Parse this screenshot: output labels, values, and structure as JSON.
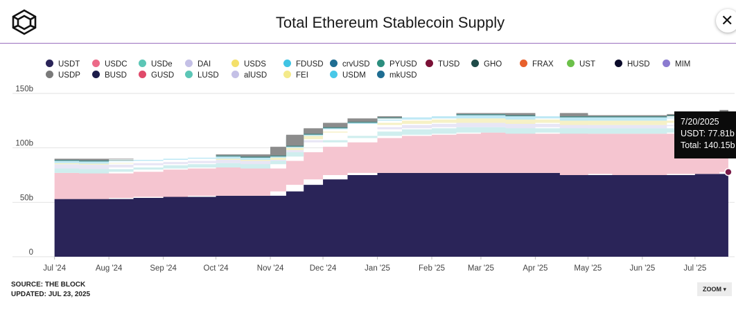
{
  "header": {
    "title": "Total Ethereum Stablecoin Supply",
    "close_label": "✕"
  },
  "legend": [
    {
      "name": "USDT",
      "color": "#2a2458"
    },
    {
      "name": "USDC",
      "color": "#ec6a88"
    },
    {
      "name": "USDe",
      "color": "#5cc6b6"
    },
    {
      "name": "DAI",
      "color": "#c4c0e6"
    },
    {
      "name": "USDS",
      "color": "#f4e06a"
    },
    {
      "name": "FDUSD",
      "color": "#40c4e4"
    },
    {
      "name": "crvUSD",
      "color": "#1f6d92"
    },
    {
      "name": "PYUSD",
      "color": "#2c8e7e"
    },
    {
      "name": "TUSD",
      "color": "#7a1036"
    },
    {
      "name": "GHO",
      "color": "#1e4a48"
    },
    {
      "name": "FRAX",
      "color": "#e8602c"
    },
    {
      "name": "UST",
      "color": "#6cc04a"
    },
    {
      "name": "HUSD",
      "color": "#0b0b2a"
    },
    {
      "name": "MIM",
      "color": "#8b7bd0"
    },
    {
      "name": "USDP",
      "color": "#7a7a7a"
    },
    {
      "name": "BUSD",
      "color": "#1c1c4a"
    },
    {
      "name": "GUSD",
      "color": "#e04a6a"
    },
    {
      "name": "LUSD",
      "color": "#5cc6b6"
    },
    {
      "name": "alUSD",
      "color": "#c4c0e6"
    },
    {
      "name": "FEI",
      "color": "#f4ea8a"
    },
    {
      "name": "USDM",
      "color": "#48c8e8"
    },
    {
      "name": "mkUSD",
      "color": "#1f6d92"
    }
  ],
  "chart_data": {
    "type": "area",
    "title": "Total Ethereum Stablecoin Supply",
    "xlabel": "",
    "ylabel": "",
    "ylim": [
      0,
      150
    ],
    "y_ticks": [
      "0",
      "50b",
      "100b",
      "150b"
    ],
    "x_ticks": [
      "Jul '24",
      "Aug '24",
      "Sep '24",
      "Oct '24",
      "Nov '24",
      "Dec '24",
      "Jan '25",
      "Feb '25",
      "Mar '25",
      "Apr '25",
      "May '25",
      "Jun '25",
      "Jul '25"
    ],
    "grid": true,
    "stacked": true,
    "x": [
      "2024-07-01",
      "2024-07-15",
      "2024-08-01",
      "2024-08-15",
      "2024-09-01",
      "2024-09-15",
      "2024-10-01",
      "2024-10-15",
      "2024-11-01",
      "2024-11-10",
      "2024-11-20",
      "2024-12-01",
      "2024-12-15",
      "2025-01-01",
      "2025-01-15",
      "2025-02-01",
      "2025-02-15",
      "2025-03-01",
      "2025-03-15",
      "2025-04-01",
      "2025-04-15",
      "2025-05-01",
      "2025-05-15",
      "2025-06-01",
      "2025-06-15",
      "2025-07-01",
      "2025-07-15",
      "2025-07-20"
    ],
    "series": [
      {
        "name": "USDT",
        "color": "#2a2458",
        "values": [
          53,
          53,
          53,
          54,
          55,
          55,
          56,
          56,
          56,
          60,
          66,
          71,
          75,
          77,
          77,
          77,
          77,
          77,
          77,
          77,
          77,
          75,
          76,
          75,
          75,
          76,
          76,
          77.81
        ]
      },
      {
        "name": "USDC",
        "color": "#f5c5d0",
        "values": [
          24,
          24,
          23.5,
          24,
          25,
          26,
          26,
          26,
          25,
          28,
          30,
          30,
          30,
          32,
          34,
          35,
          36,
          37,
          37,
          36,
          37,
          38,
          37,
          38,
          38,
          38,
          39,
          40
        ]
      },
      {
        "name": "USDe",
        "color": "#cfeeee",
        "values": [
          4,
          4,
          4,
          4,
          4,
          4,
          4,
          4,
          4,
          4,
          5,
          6,
          6,
          6,
          6,
          6,
          6,
          5,
          5,
          5,
          5,
          5,
          5,
          5,
          5,
          6,
          6,
          6
        ]
      },
      {
        "name": "DAI",
        "color": "#e8e6f5",
        "values": [
          4,
          4,
          4,
          4,
          3,
          3,
          3,
          3,
          3,
          4,
          4,
          4,
          4,
          4,
          4,
          4,
          4,
          4,
          4,
          4,
          4,
          3,
          3,
          3,
          3,
          3,
          3,
          3
        ]
      },
      {
        "name": "USDS",
        "color": "#f6f1c6",
        "values": [
          1,
          1,
          1,
          1,
          1,
          1,
          1,
          1,
          1,
          2,
          3,
          3,
          4,
          4,
          4,
          4,
          4,
          4,
          4,
          4,
          4,
          4,
          4,
          4,
          4,
          4,
          4,
          4
        ]
      },
      {
        "name": "FDUSD",
        "color": "#bfe9f5",
        "values": [
          2,
          2,
          2,
          2,
          2,
          2,
          2,
          2,
          2,
          2,
          3,
          3,
          3,
          3,
          3,
          3,
          3,
          3,
          3,
          3,
          3,
          3,
          3,
          3,
          3,
          3,
          3,
          3
        ]
      },
      {
        "name": "PYUSD",
        "color": "#4f8a88",
        "values": [
          1,
          1,
          1,
          1,
          1,
          1,
          1,
          1,
          1,
          1,
          1,
          1,
          1,
          1,
          1,
          1,
          1,
          1,
          1,
          1,
          1,
          1,
          1,
          1,
          1,
          1,
          1,
          1
        ]
      },
      {
        "name": "USDP",
        "color": "#8c8c8c",
        "values": [
          1,
          1,
          1,
          1,
          1,
          1,
          1,
          1,
          1,
          1,
          1,
          1,
          1,
          1,
          1,
          1,
          1,
          1,
          1,
          1,
          1,
          1,
          1,
          1,
          1,
          1,
          1,
          1
        ]
      }
    ],
    "tooltip": {
      "date": "7/20/2025",
      "line1": "USDT: 77.81b",
      "line2": "Total: 140.15b",
      "usdt_value": 77.81
    }
  },
  "footer": {
    "source": "SOURCE: THE BLOCK",
    "updated": "UPDATED: JUL 23, 2025"
  },
  "zoom_label": "ZOOM ▾"
}
